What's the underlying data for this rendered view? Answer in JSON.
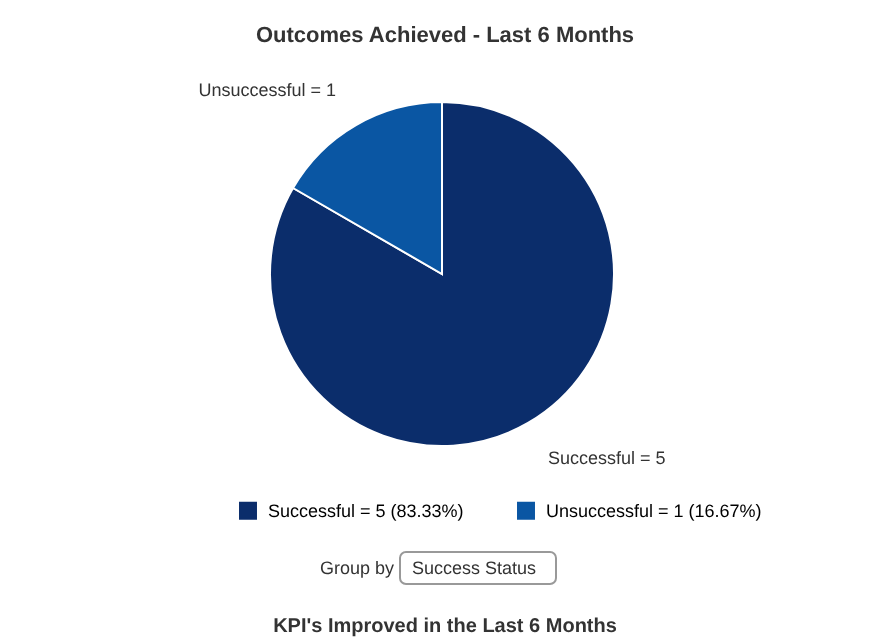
{
  "chart_data": {
    "type": "pie",
    "title": "Outcomes Achieved - Last 6 Months",
    "categories": [
      "Successful = 5 (83.33%)",
      "Unsuccessful = 1 (16.67%)"
    ],
    "values": [
      5,
      1
    ],
    "colors": [
      "#0b2d6b",
      "#0a56a3"
    ],
    "value_labels": [
      "Successful = 5",
      "Unsuccessful = 1"
    ],
    "legend": "bottom",
    "annotations": [
      "Group by",
      "Success Status",
      "KPI's Improved in the Last 6 Months"
    ]
  }
}
